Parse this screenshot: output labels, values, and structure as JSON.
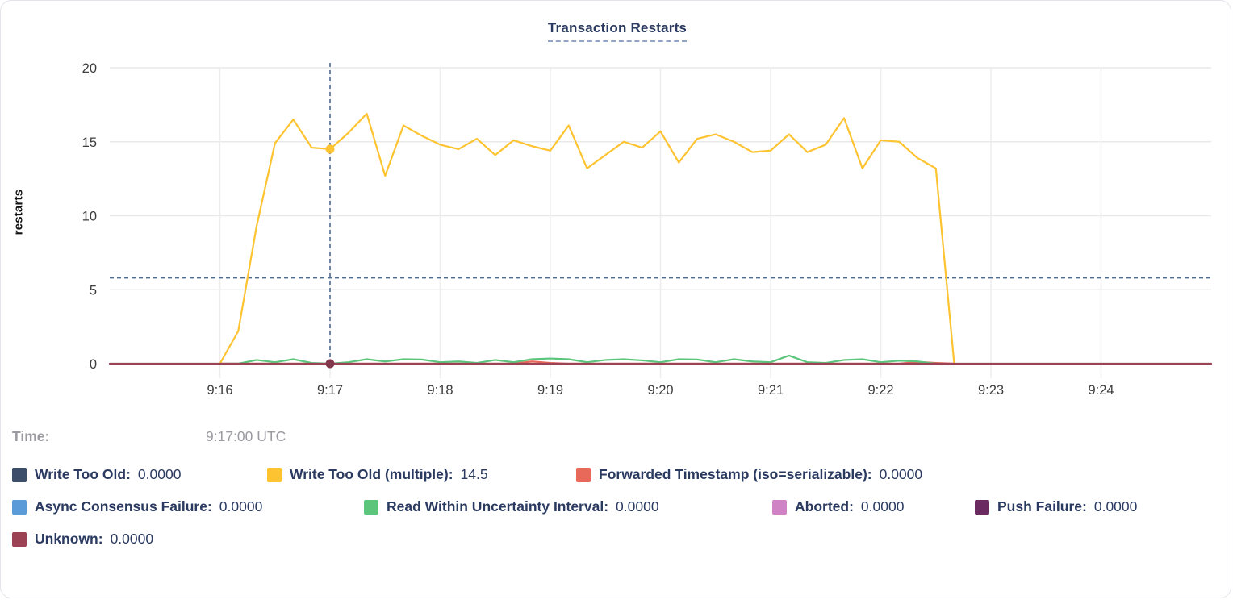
{
  "title": "Transaction Restarts",
  "axes": {
    "y_label": "restarts",
    "y_ticks": [
      0,
      5,
      10,
      15,
      20
    ],
    "x_ticks": [
      "9:16",
      "9:17",
      "9:18",
      "9:19",
      "9:20",
      "9:21",
      "9:22",
      "9:23",
      "9:24"
    ]
  },
  "readout": {
    "time_label": "Time:",
    "time_value": "9:17:00 UTC"
  },
  "legend_rows": [
    [
      {
        "label": "Write Too Old:",
        "value": "0.0000",
        "color": "#3d4e6b"
      },
      {
        "label": "Write Too Old (multiple):",
        "value": "14.5",
        "color": "#fdc330"
      },
      {
        "label": "Forwarded Timestamp (iso=serializable):",
        "value": "0.0000",
        "color": "#e8695a"
      }
    ],
    [
      {
        "label": "Async Consensus Failure:",
        "value": "0.0000",
        "color": "#5b9bd8"
      },
      {
        "label": "Read Within Uncertainty Interval:",
        "value": "0.0000",
        "color": "#5cc57c"
      },
      {
        "label": "Aborted:",
        "value": "0.0000",
        "color": "#d083c4"
      },
      {
        "label": "Push Failure:",
        "value": "0.0000",
        "color": "#6b2b60"
      }
    ],
    [
      {
        "label": "Unknown:",
        "value": "0.0000",
        "color": "#9b4355"
      }
    ]
  ],
  "chart_data": {
    "type": "line",
    "title": "Transaction Restarts",
    "xlabel": "",
    "ylabel": "restarts",
    "ylim": [
      0,
      20
    ],
    "y_ticks": [
      0,
      5,
      10,
      15,
      20
    ],
    "x_domain": [
      "9:15:00",
      "9:25:00"
    ],
    "x_tick_labels": [
      "9:16",
      "9:17",
      "9:18",
      "9:19",
      "9:20",
      "9:21",
      "9:22",
      "9:23",
      "9:24"
    ],
    "grid": true,
    "legend_position": "below",
    "series": [
      {
        "name": "Forwarded Timestamp (iso=serializable)",
        "color": "#e8695a",
        "start": "9:16:00",
        "step_seconds": 10,
        "values": [
          0,
          0,
          0,
          0,
          0,
          0,
          0,
          0,
          0,
          0,
          0,
          0,
          0,
          0,
          0,
          0,
          0,
          0.15,
          0.05,
          0,
          0,
          0,
          0,
          0,
          0,
          0,
          0,
          0,
          0,
          0,
          0,
          0,
          0,
          0,
          0,
          0,
          0,
          0,
          0.12,
          0.05,
          0
        ]
      },
      {
        "name": "Read Within Uncertainty Interval",
        "color": "#5cc57c",
        "start": "9:16:00",
        "step_seconds": 10,
        "values": [
          0,
          0,
          0.25,
          0.1,
          0.3,
          0.05,
          0,
          0.1,
          0.3,
          0.15,
          0.3,
          0.28,
          0.1,
          0.15,
          0.05,
          0.25,
          0.1,
          0.3,
          0.35,
          0.3,
          0.1,
          0.25,
          0.3,
          0.22,
          0.1,
          0.3,
          0.28,
          0.1,
          0.3,
          0.15,
          0.1,
          0.55,
          0.1,
          0.05,
          0.25,
          0.3,
          0.1,
          0.2,
          0.15,
          0
        ]
      },
      {
        "name": "Write Too Old (multiple)",
        "color": "#fdc330",
        "start": "9:16:00",
        "step_seconds": 10,
        "values": [
          0,
          2.2,
          9.3,
          14.9,
          16.5,
          14.6,
          14.5,
          15.6,
          16.9,
          12.7,
          16.1,
          15.4,
          14.8,
          14.5,
          15.2,
          14.1,
          15.1,
          14.7,
          14.4,
          16.1,
          13.2,
          14.1,
          15.0,
          14.6,
          15.7,
          13.6,
          15.2,
          15.5,
          15.0,
          14.3,
          14.4,
          15.5,
          14.3,
          14.8,
          16.6,
          13.2,
          15.1,
          15.0,
          13.9,
          13.2,
          0
        ]
      },
      {
        "name": "Unknown",
        "color": "#9b4355",
        "start": "9:15:00",
        "step_seconds": 600,
        "values": [
          0,
          0
        ]
      }
    ],
    "crosshair": {
      "time": "9:17:00",
      "y_value": 5.8,
      "color": "#4f6b8f"
    },
    "hover_points": [
      {
        "series": "Write Too Old (multiple)",
        "time": "9:17:00",
        "value": 14.5,
        "color": "#fdc330"
      },
      {
        "series": "Unknown",
        "time": "9:17:00",
        "value": 0,
        "color": "#83374b"
      }
    ]
  }
}
